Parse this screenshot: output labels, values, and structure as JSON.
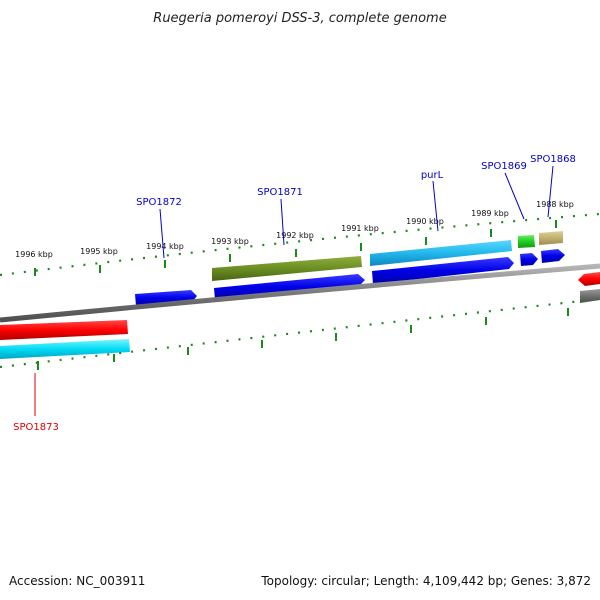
{
  "title": "Ruegeria pomeroyi DSS-3, complete genome",
  "footer": {
    "accession": "Accession: NC_003911",
    "summary": "Topology: circular; Length: 4,109,442 bp; Genes: 3,872"
  },
  "ruler": {
    "labels": [
      "1996 kbp",
      "1995 kbp",
      "1994 kbp",
      "1993 kbp",
      "1992 kbp",
      "1991 kbp",
      "1990 kbp",
      "1989 kbp",
      "1988 kbp"
    ]
  },
  "gene_labels": [
    {
      "text": "SPO1873",
      "color": "#e00000"
    },
    {
      "text": "SPO1872",
      "color": "#0000cc"
    },
    {
      "text": "SPO1871",
      "color": "#0000cc"
    },
    {
      "text": "purL",
      "color": "#0000cc"
    },
    {
      "text": "SPO1869",
      "color": "#0000cc"
    },
    {
      "text": "SPO1868",
      "color": "#0000cc"
    }
  ],
  "colors": {
    "backbone": "#7a7a7a",
    "tick": "#1a8a1a",
    "cds_forward": "#1010e0",
    "cds_reverse": "#e00000",
    "gene_cyan": "#00c8e8",
    "gene_olive": "#6b8e23",
    "gene_green": "#33cc33",
    "gene_khaki": "#c8b878",
    "gene_grey": "#707070"
  }
}
